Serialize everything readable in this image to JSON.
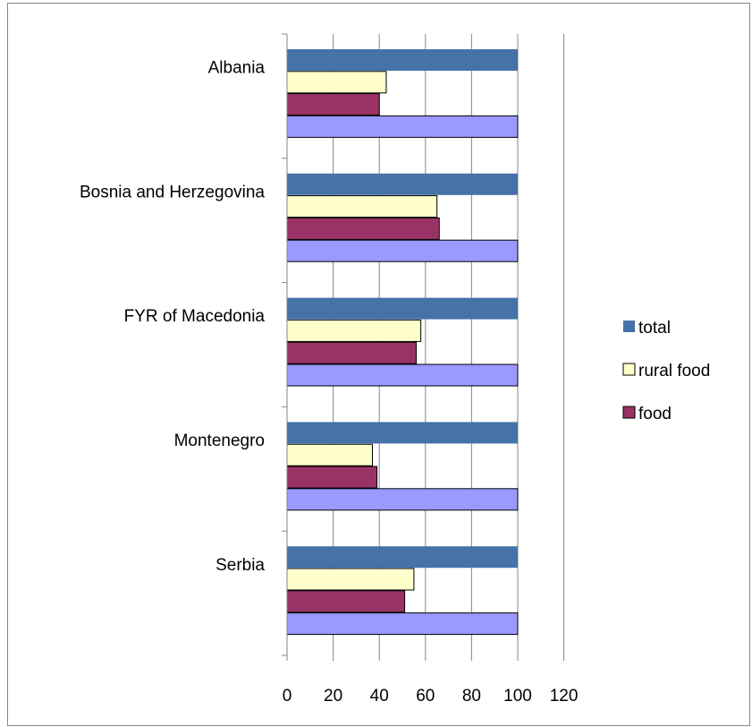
{
  "chart_data": {
    "type": "bar",
    "orientation": "horizontal",
    "categories": [
      "Albania",
      "Bosnia and Herzegovina",
      "FYR of Macedonia",
      "Montenegro",
      "Serbia"
    ],
    "series": [
      {
        "name": "total",
        "color": "#4573A7",
        "values": [
          100,
          100,
          100,
          100,
          100
        ]
      },
      {
        "name": "rural food",
        "color": "#FFFFCC",
        "values": [
          43,
          65,
          58,
          37,
          55
        ]
      },
      {
        "name": "food",
        "color": "#993366",
        "values": [
          40,
          66,
          56,
          39,
          51
        ]
      },
      {
        "name": "",
        "color": "#9999FF",
        "values": [
          100,
          100,
          100,
          100,
          100
        ]
      }
    ],
    "legend": [
      "total",
      "rural food",
      "food"
    ],
    "legend_position": "right",
    "xlim": [
      0,
      120
    ],
    "xticks": [
      "0",
      "20",
      "40",
      "60",
      "80",
      "100",
      "120"
    ],
    "grid": "vertical"
  }
}
